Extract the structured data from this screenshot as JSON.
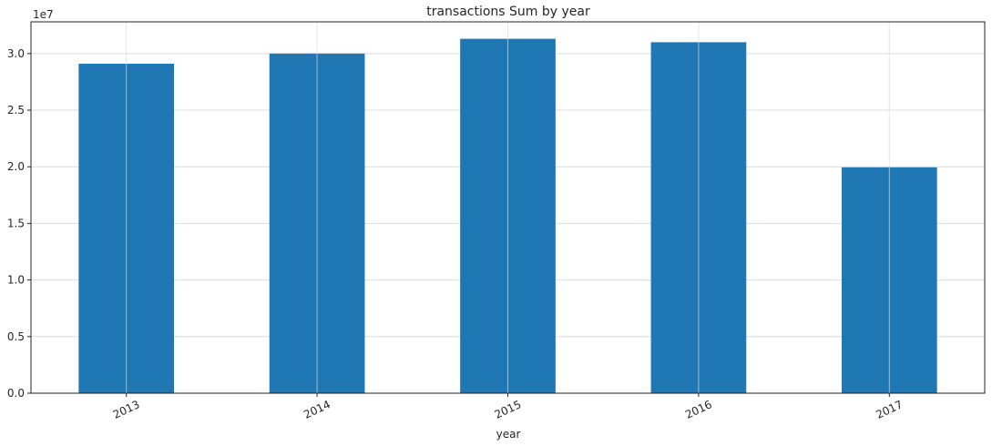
{
  "chart_data": {
    "type": "bar",
    "title": "transactions Sum by year",
    "xlabel": "year",
    "ylabel": "",
    "y_scale_label": "1e7",
    "categories": [
      "2013",
      "2014",
      "2015",
      "2016",
      "2017"
    ],
    "values": [
      29100000,
      30000000,
      31300000,
      31000000,
      19950000
    ],
    "ylim": [
      0,
      32800000
    ],
    "y_ticks": [
      0,
      5000000,
      10000000,
      15000000,
      20000000,
      25000000,
      30000000
    ],
    "y_tick_labels": [
      "0.0",
      "0.5",
      "1.0",
      "1.5",
      "2.0",
      "2.5",
      "3.0"
    ],
    "grid": true,
    "x_tick_rotation_deg": -25,
    "bar_color": "#1f77b4",
    "grid_color": "#dcdcdc",
    "axis_color": "#262626"
  }
}
